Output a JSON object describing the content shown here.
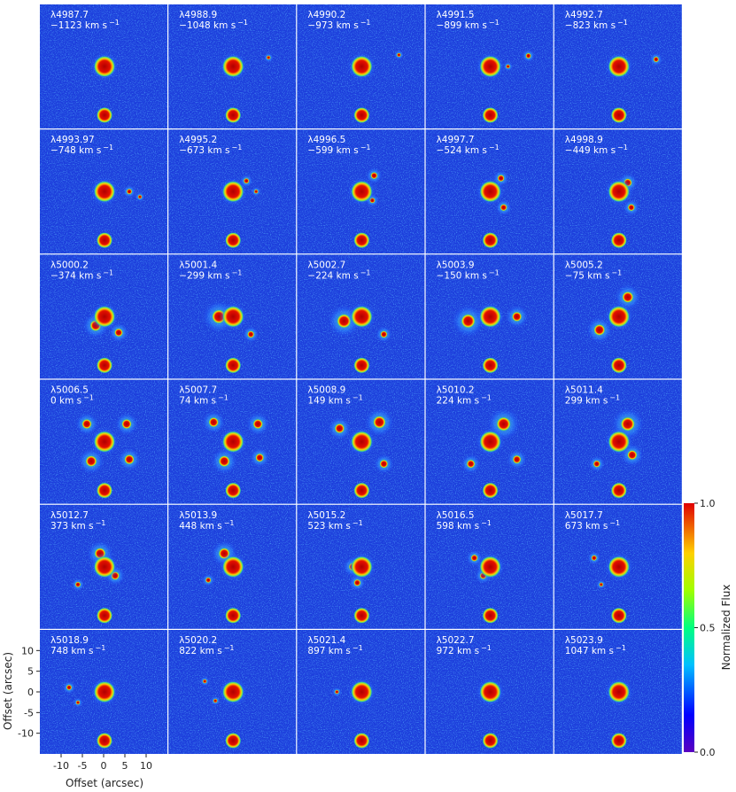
{
  "chart_data": {
    "type": "image-grid",
    "x_label": "Offset (arcsec)",
    "y_label": "Offset (arcsec)",
    "xlim": [
      -15,
      15
    ],
    "ylim": [
      -15,
      15
    ],
    "xticks": [
      -10,
      -5,
      0,
      5,
      10
    ],
    "yticks": [
      10,
      5,
      0,
      -5,
      -10
    ],
    "colorbar": {
      "label": "Normalized Flux",
      "lim": [
        0,
        1
      ],
      "ticks": [
        {
          "value": 0,
          "label": "0.0"
        },
        {
          "value": 0.5,
          "label": "0.5"
        },
        {
          "value": 1,
          "label": "1.0"
        }
      ]
    },
    "panels": [
      {
        "wavelength": "λ4987.7",
        "velocity": "−1123 km s",
        "exponent": "−1"
      },
      {
        "wavelength": "λ4988.9",
        "velocity": "−1048 km s",
        "exponent": "−1"
      },
      {
        "wavelength": "λ4990.2",
        "velocity": "−973 km s",
        "exponent": "−1"
      },
      {
        "wavelength": "λ4991.5",
        "velocity": "−899 km s",
        "exponent": "−1"
      },
      {
        "wavelength": "λ4992.7",
        "velocity": "−823 km s",
        "exponent": "−1"
      },
      {
        "wavelength": "λ4993.97",
        "velocity": "−748 km s",
        "exponent": "−1"
      },
      {
        "wavelength": "λ4995.2",
        "velocity": "−673 km s",
        "exponent": "−1"
      },
      {
        "wavelength": "λ4996.5",
        "velocity": "−599 km s",
        "exponent": "−1"
      },
      {
        "wavelength": "λ4997.7",
        "velocity": "−524 km s",
        "exponent": "−1"
      },
      {
        "wavelength": "λ4998.9",
        "velocity": "−449 km s",
        "exponent": "−1"
      },
      {
        "wavelength": "λ5000.2",
        "velocity": "−374 km s",
        "exponent": "−1"
      },
      {
        "wavelength": "λ5001.4",
        "velocity": "−299 km s",
        "exponent": "−1"
      },
      {
        "wavelength": "λ5002.7",
        "velocity": "−224 km s",
        "exponent": "−1"
      },
      {
        "wavelength": "λ5003.9",
        "velocity": "−150 km s",
        "exponent": "−1"
      },
      {
        "wavelength": "λ5005.2",
        "velocity": "−75 km s",
        "exponent": "−1"
      },
      {
        "wavelength": "λ5006.5",
        "velocity": "0 km s",
        "exponent": "−1"
      },
      {
        "wavelength": "λ5007.7",
        "velocity": "74 km s",
        "exponent": "−1"
      },
      {
        "wavelength": "λ5008.9",
        "velocity": "149 km s",
        "exponent": "−1"
      },
      {
        "wavelength": "λ5010.2",
        "velocity": "224 km s",
        "exponent": "−1"
      },
      {
        "wavelength": "λ5011.4",
        "velocity": "299 km s",
        "exponent": "−1"
      },
      {
        "wavelength": "λ5012.7",
        "velocity": "373 km s",
        "exponent": "−1"
      },
      {
        "wavelength": "λ5013.9",
        "velocity": "448 km s",
        "exponent": "−1"
      },
      {
        "wavelength": "λ5015.2",
        "velocity": "523 km s",
        "exponent": "−1"
      },
      {
        "wavelength": "λ5016.5",
        "velocity": "598 km s",
        "exponent": "−1"
      },
      {
        "wavelength": "λ5017.7",
        "velocity": "673 km s",
        "exponent": "−1"
      },
      {
        "wavelength": "λ5018.9",
        "velocity": "748 km s",
        "exponent": "−1"
      },
      {
        "wavelength": "λ5020.2",
        "velocity": "822 km s",
        "exponent": "−1"
      },
      {
        "wavelength": "λ5021.4",
        "velocity": "897 km s",
        "exponent": "−1"
      },
      {
        "wavelength": "λ5022.7",
        "velocity": "972 km s",
        "exponent": "−1"
      },
      {
        "wavelength": "λ5023.9",
        "velocity": "1047 km s",
        "exponent": "−1"
      }
    ]
  }
}
